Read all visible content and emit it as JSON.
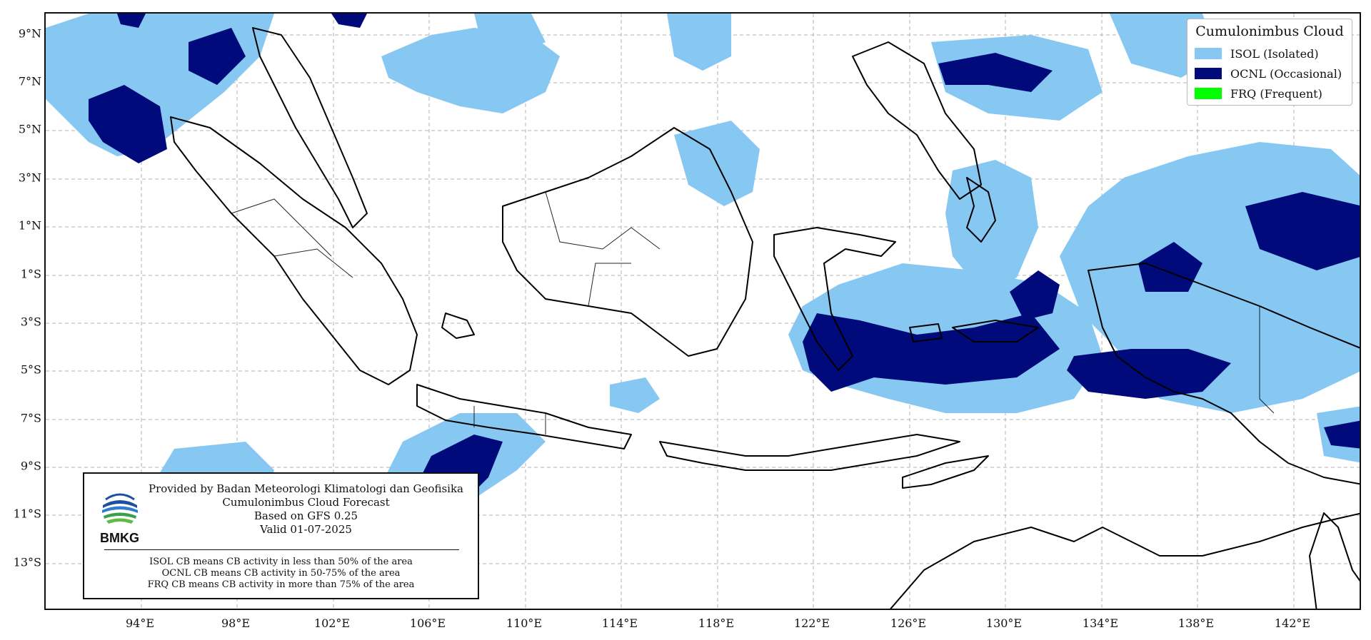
{
  "map": {
    "lat_ticks": [
      "9°N",
      "7°N",
      "5°N",
      "3°N",
      "1°N",
      "1°S",
      "3°S",
      "5°S",
      "7°S",
      "9°S",
      "11°S",
      "13°S"
    ],
    "lon_ticks": [
      "94°E",
      "98°E",
      "102°E",
      "106°E",
      "110°E",
      "114°E",
      "118°E",
      "122°E",
      "126°E",
      "130°E",
      "134°E",
      "138°E",
      "142°E"
    ],
    "colors": {
      "isol": "#87c8f2",
      "ocnl": "#000a7a",
      "frq": "#00ff00",
      "coast": "#000000",
      "grid": "#b0b0b0"
    }
  },
  "legend": {
    "title": "Cumulonimbus Cloud",
    "items": [
      {
        "label": "ISOL (Isolated)",
        "color": "#87c8f2"
      },
      {
        "label": "OCNL (Occasional)",
        "color": "#000a7a"
      },
      {
        "label": "FRQ (Frequent)",
        "color": "#00ff00"
      }
    ]
  },
  "info": {
    "logo_text": "BMKG",
    "line1": "Provided by Badan Meteorologi Klimatologi dan Geofisika",
    "line2": "Cumulonimbus Cloud Forecast",
    "line3": "Based on GFS 0.25",
    "line4": "Valid 01-07-2025",
    "note1": "ISOL CB means CB activity in less than 50% of the area",
    "note2": "OCNL CB means CB activity in 50-75% of the area",
    "note3": "FRQ CB means CB activity in more than 75% of the area"
  }
}
